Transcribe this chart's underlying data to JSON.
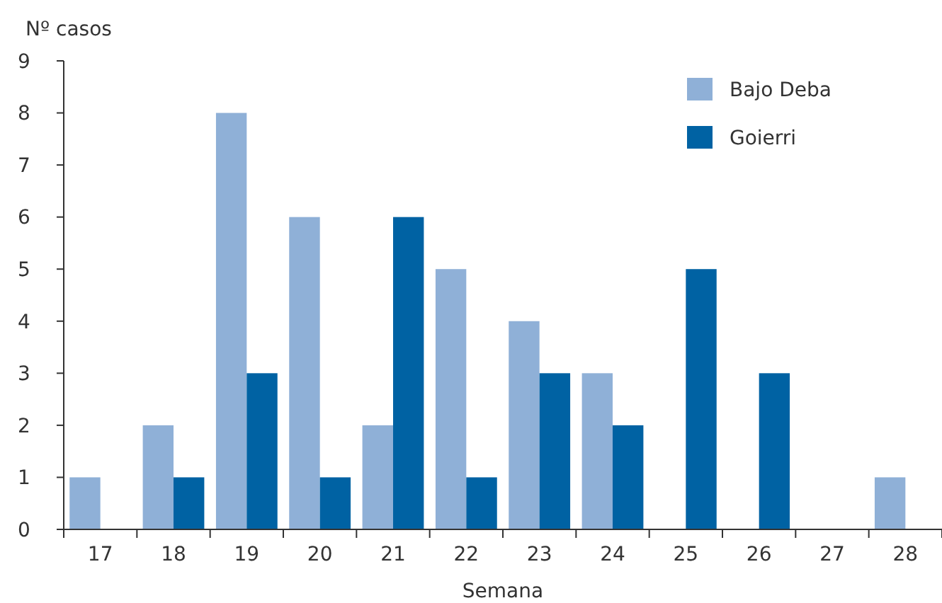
{
  "chart_data": {
    "type": "bar",
    "ylabel": "Nº casos",
    "xlabel": "Semana",
    "categories": [
      "17",
      "18",
      "19",
      "20",
      "21",
      "22",
      "23",
      "24",
      "25",
      "26",
      "27",
      "28"
    ],
    "series": [
      {
        "name": "Bajo Deba",
        "color": "#8fb0d7",
        "values": [
          1,
          2,
          8,
          6,
          2,
          5,
          4,
          3,
          0,
          0,
          0,
          1
        ]
      },
      {
        "name": "Goierri",
        "color": "#0062a3",
        "values": [
          0,
          1,
          3,
          1,
          6,
          1,
          3,
          2,
          5,
          3,
          0,
          0
        ]
      }
    ],
    "ylim": [
      0,
      9
    ],
    "yticks": [
      0,
      1,
      2,
      3,
      4,
      5,
      6,
      7,
      8,
      9
    ],
    "grid": false,
    "legend": "top right"
  }
}
